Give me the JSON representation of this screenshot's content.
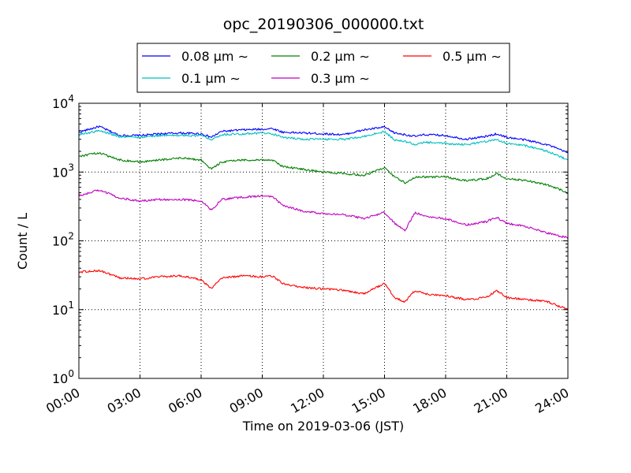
{
  "chart_data": {
    "type": "line",
    "title": "opc_20190306_000000.txt",
    "xlabel": "Time on 2019-03-06 (JST)",
    "ylabel": "Count / L",
    "xlim": [
      "2019-03-06 00:00",
      "2019-03-07 00:00"
    ],
    "x_ticks": [
      "00:00",
      "03:00",
      "06:00",
      "09:00",
      "12:00",
      "15:00",
      "18:00",
      "21:00",
      "24:00"
    ],
    "x_hours": [
      0,
      1,
      2,
      3,
      4,
      5,
      6,
      6.5,
      7,
      8,
      9,
      9.5,
      10,
      11,
      12,
      13,
      14,
      15,
      15.5,
      16,
      16.5,
      17,
      18,
      19,
      20,
      20.5,
      21,
      22,
      23,
      24
    ],
    "yscale": "log",
    "ylim": [
      1,
      10000
    ],
    "y_ticks": [
      1,
      10,
      100,
      1000,
      10000
    ],
    "y_tick_labels": [
      {
        "base": "10",
        "exp": "0"
      },
      {
        "base": "10",
        "exp": "1"
      },
      {
        "base": "10",
        "exp": "2"
      },
      {
        "base": "10",
        "exp": "3"
      },
      {
        "base": "10",
        "exp": "4"
      }
    ],
    "grid": true,
    "legend_position": "top-center",
    "series": [
      {
        "name": "0.08 μm ∼",
        "color": "#0000ff",
        "values": [
          3800,
          4600,
          3400,
          3400,
          3600,
          3700,
          3600,
          3200,
          3900,
          4100,
          4200,
          4300,
          3800,
          3700,
          3600,
          3500,
          4100,
          4500,
          3700,
          3500,
          3300,
          3500,
          3400,
          3000,
          3300,
          3600,
          3200,
          2900,
          2500,
          1900
        ]
      },
      {
        "name": "0.1 μm ∼",
        "color": "#00bfbf",
        "values": [
          3500,
          4000,
          3300,
          3200,
          3400,
          3400,
          3400,
          3000,
          3500,
          3600,
          3700,
          3600,
          3200,
          3000,
          3000,
          3000,
          3300,
          3900,
          2900,
          2800,
          2500,
          2700,
          2600,
          2500,
          2800,
          3000,
          2600,
          2400,
          2000,
          1500
        ]
      },
      {
        "name": "0.2 μm ∼",
        "color": "#008000",
        "values": [
          1700,
          1900,
          1500,
          1400,
          1500,
          1600,
          1500,
          1100,
          1400,
          1500,
          1500,
          1500,
          1200,
          1100,
          1000,
          950,
          900,
          1150,
          850,
          700,
          850,
          850,
          850,
          750,
          800,
          950,
          800,
          750,
          650,
          500
        ]
      },
      {
        "name": "0.3 μm ∼",
        "color": "#bf00bf",
        "values": [
          450,
          550,
          420,
          380,
          400,
          400,
          380,
          280,
          400,
          430,
          450,
          440,
          330,
          270,
          250,
          240,
          210,
          260,
          180,
          140,
          260,
          230,
          210,
          170,
          190,
          220,
          180,
          160,
          130,
          110
        ]
      },
      {
        "name": "0.5 μm ∼",
        "color": "#ff0000",
        "values": [
          35,
          37,
          29,
          28,
          30,
          31,
          27,
          20,
          29,
          31,
          30,
          31,
          24,
          21,
          20,
          19,
          17,
          24,
          15,
          13,
          19,
          17,
          16,
          14,
          15,
          19,
          15,
          14,
          13,
          10
        ]
      }
    ]
  }
}
